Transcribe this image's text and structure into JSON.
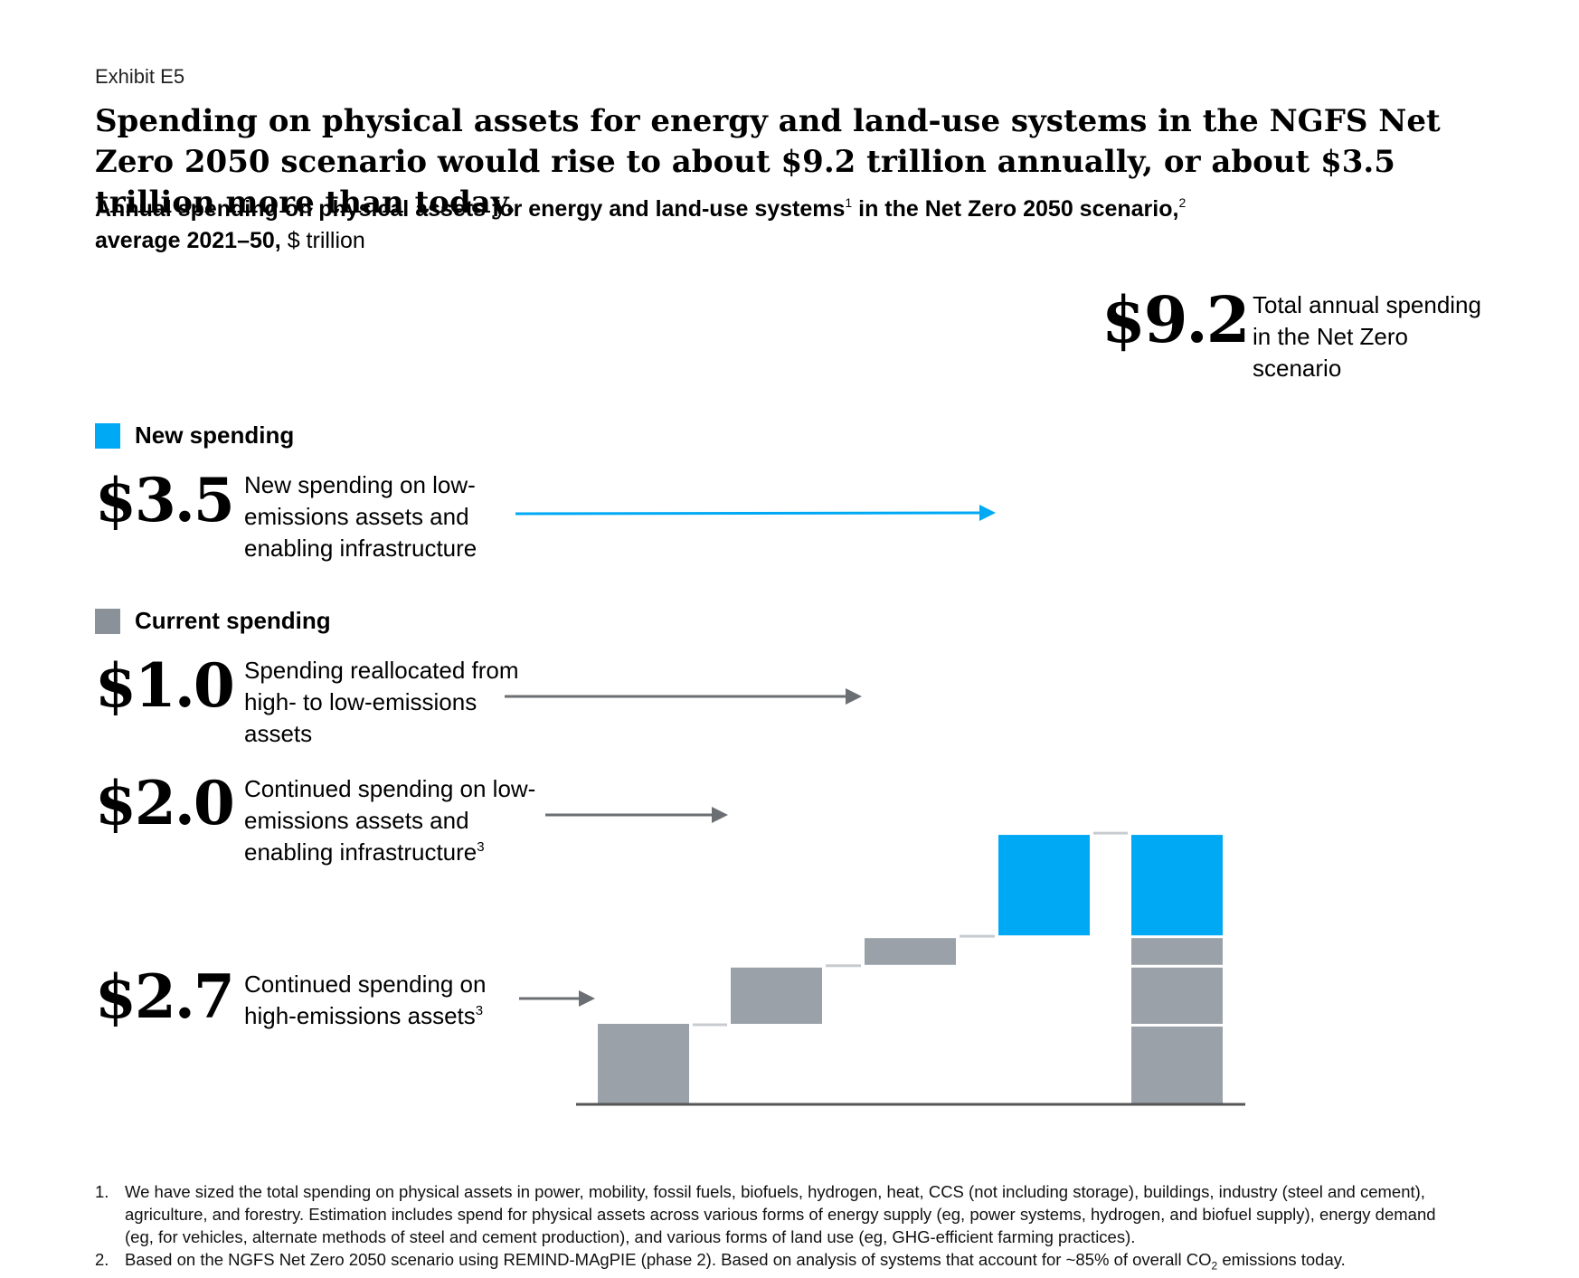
{
  "exhibit_label": "Exhibit E5",
  "title": "Spending on physical assets for energy and land-use systems in the NGFS Net Zero 2050 scenario would rise to about $9.2 trillion annually, or about $3.5 trillion more than today.",
  "subtitle": {
    "bold_part_1": "Annual spending on physical assets for energy and land-use systems",
    "sup_1": "1",
    "bold_part_2": " in the Net Zero 2050 scenario,",
    "sup_2": "2",
    "bold_part_3": "average 2021–50,",
    "unit": " $ trillion"
  },
  "legend": {
    "new_label": "New spending",
    "current_label": "Current spending"
  },
  "items": {
    "new": {
      "value_label": "$3.5",
      "description": "New spending on low-emissions assets and enabling infrastructure"
    },
    "reallocated": {
      "value_label": "$1.0",
      "description": "Spending reallocated from high- to low-emissions assets"
    },
    "low_continued": {
      "value_label": "$2.0",
      "description": "Continued spending on low-emissions assets and enabling infrastructure",
      "sup": "3"
    },
    "high_continued": {
      "value_label": "$2.7",
      "description": "Continued spending on high-emissions assets",
      "sup": "3"
    }
  },
  "total": {
    "value_label": "$9.2",
    "description": "Total annual spending in the Net Zero scenario"
  },
  "colors": {
    "new": "#00A9F4",
    "current": "#9AA1A8",
    "legend_current": "#8A9199",
    "connector": "#C8CCD0",
    "arrow_gray": "#6B6E72",
    "axis": "#555555"
  },
  "chart_data": {
    "type": "waterfall",
    "title": "Annual spending on physical assets for energy and land-use systems in the Net Zero 2050 scenario, average 2021–50, $ trillion",
    "unit": "$ trillion",
    "steps": [
      {
        "name": "Continued spending on high-emissions assets",
        "value": 2.7,
        "group": "current"
      },
      {
        "name": "Continued spending on low-emissions assets and enabling infrastructure",
        "value": 2.0,
        "group": "current"
      },
      {
        "name": "Spending reallocated from high- to low-emissions assets",
        "value": 1.0,
        "group": "current"
      },
      {
        "name": "New spending on low-emissions assets and enabling infrastructure",
        "value": 3.5,
        "group": "new"
      }
    ],
    "total": {
      "name": "Total annual spending in the Net Zero scenario",
      "value": 9.2
    },
    "ylim": [
      0,
      9.2
    ]
  },
  "footnotes": [
    {
      "num": "1.",
      "text": "We have sized the total spending on physical assets in power, mobility, fossil fuels, biofuels, hydrogen, heat, CCS (not including storage), buildings, industry (steel and cement), agriculture, and forestry. Estimation includes spend for physical assets across various forms of energy supply (eg, power systems, hydrogen, and biofuel supply), energy demand (eg, for vehicles, alternate methods of steel and cement production), and various forms of land use (eg, GHG-efficient farming practices)."
    },
    {
      "num": "2.",
      "text_before": "Based on the NGFS Net Zero 2050 scenario using REMIND-MAgPIE (phase 2). Based on analysis of systems that account for ~85% of overall CO",
      "sub": "2",
      "text_after": " emissions today."
    }
  ]
}
